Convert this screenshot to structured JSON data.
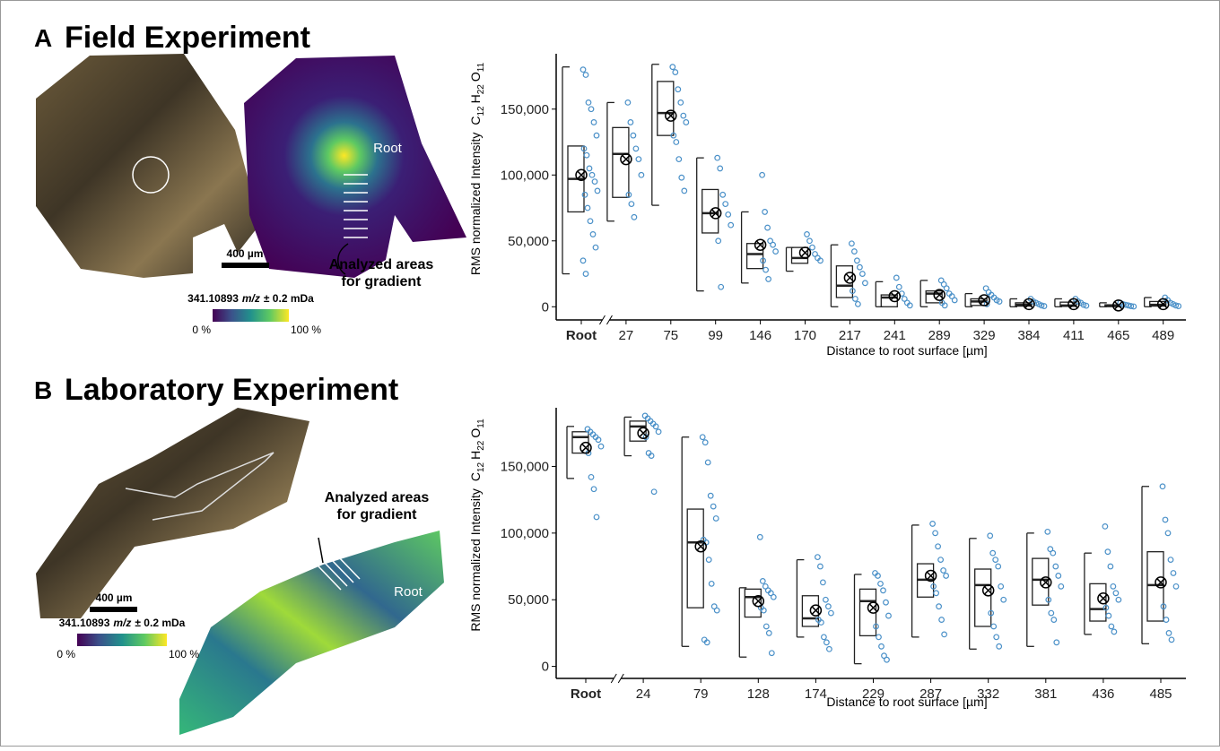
{
  "chart_data": [
    {
      "type": "box",
      "panel": "A",
      "title": "Field Experiment",
      "y_label": "RMS normalized Intensity",
      "y_compound": [
        "C",
        "12",
        "H",
        "22",
        "O",
        "11"
      ],
      "x_label": "Distance to root surface [µm]",
      "categories": [
        "Root",
        "27",
        "75",
        "99",
        "146",
        "170",
        "217",
        "241",
        "289",
        "329",
        "384",
        "411",
        "465",
        "489"
      ],
      "ylim": [
        -10000,
        192000
      ],
      "yticks": [
        0,
        {
          "value": 50000,
          "label": "50,000"
        },
        {
          "value": 100000,
          "label": "100,000"
        },
        {
          "value": 150000,
          "label": "150,000"
        }
      ],
      "box_color": "#222222",
      "point_color": "#4a90c8",
      "min": [
        25000,
        65000,
        77000,
        12000,
        18000,
        27000,
        0,
        0,
        0,
        0,
        0,
        0,
        0,
        0
      ],
      "q1": [
        72000,
        83000,
        130000,
        56000,
        29000,
        33000,
        7000,
        0,
        3000,
        1000,
        500,
        300,
        200,
        500
      ],
      "median": [
        97000,
        116000,
        147000,
        71000,
        40000,
        37000,
        16000,
        7000,
        10000,
        4000,
        1500,
        1000,
        500,
        1500
      ],
      "q3": [
        122000,
        136000,
        171000,
        89000,
        48000,
        45000,
        31000,
        9000,
        12000,
        6000,
        3000,
        3500,
        1500,
        4000
      ],
      "max": [
        182000,
        155000,
        184000,
        113000,
        72000,
        45000,
        47000,
        19000,
        20000,
        10000,
        6000,
        6000,
        3000,
        7000
      ],
      "mean": [
        100000,
        112000,
        145000,
        71000,
        47000,
        41000,
        22000,
        8000,
        9000,
        5000,
        2000,
        2000,
        1000,
        2000
      ],
      "points": [
        [
          180000,
          176000,
          155000,
          150000,
          140000,
          130000,
          120000,
          115000,
          105000,
          100000,
          95000,
          88000,
          85000,
          75000,
          65000,
          55000,
          45000,
          35000,
          25000
        ],
        [
          155000,
          140000,
          130000,
          120000,
          112000,
          100000,
          85000,
          78000,
          68000
        ],
        [
          182000,
          178000,
          165000,
          155000,
          145000,
          140000,
          130000,
          125000,
          112000,
          98000,
          88000
        ],
        [
          113000,
          105000,
          85000,
          78000,
          70000,
          62000,
          50000,
          15000
        ],
        [
          100000,
          72000,
          60000,
          50000,
          47000,
          42000,
          35000,
          28000,
          21000
        ],
        [
          55000,
          50000,
          45000,
          40000,
          37000,
          35000
        ],
        [
          48000,
          42000,
          35000,
          30000,
          25000,
          18000,
          12000,
          6000,
          2000
        ],
        [
          22000,
          15000,
          10000,
          6000,
          3000,
          1000
        ],
        [
          20000,
          17000,
          14000,
          10000,
          8000,
          5000,
          3000,
          1000
        ],
        [
          14000,
          11000,
          9000,
          7000,
          5000,
          4000,
          2000
        ],
        [
          6000,
          4000,
          3000,
          2000,
          1000,
          500
        ],
        [
          6000,
          4000,
          3000,
          1500,
          800
        ],
        [
          3000,
          2000,
          1500,
          1000,
          500,
          200
        ],
        [
          7000,
          5000,
          3000,
          2000,
          1000,
          500
        ]
      ]
    },
    {
      "type": "box",
      "panel": "B",
      "title": "Laboratory Experiment",
      "y_label": "RMS normalized Intensity",
      "y_compound": [
        "C",
        "12",
        "H",
        "22",
        "O",
        "11"
      ],
      "x_label": "Distance to root surface [µm]",
      "categories": [
        "Root",
        "24",
        "79",
        "128",
        "174",
        "229",
        "287",
        "332",
        "381",
        "436",
        "485"
      ],
      "ylim": [
        -9000,
        194000
      ],
      "yticks": [
        0,
        {
          "value": 50000,
          "label": "50,000"
        },
        {
          "value": 100000,
          "label": "100,000"
        },
        {
          "value": 150000,
          "label": "150,000"
        }
      ],
      "box_color": "#222222",
      "point_color": "#4a90c8",
      "min": [
        141000,
        158000,
        15000,
        7000,
        22000,
        2000,
        22000,
        13000,
        15000,
        24000,
        17000
      ],
      "q1": [
        160000,
        169000,
        44000,
        37000,
        30000,
        23000,
        52000,
        30000,
        46000,
        34000,
        34000
      ],
      "median": [
        172000,
        180000,
        93000,
        52000,
        36000,
        49000,
        65000,
        61000,
        65000,
        43000,
        61000
      ],
      "q3": [
        176000,
        184000,
        118000,
        58000,
        53000,
        58000,
        77000,
        73000,
        81000,
        62000,
        86000
      ],
      "max": [
        180000,
        187000,
        172000,
        59000,
        80000,
        69000,
        106000,
        96000,
        100000,
        85000,
        135000
      ],
      "mean": [
        164000,
        175000,
        90000,
        49000,
        42000,
        44000,
        68000,
        57000,
        63000,
        51000,
        63000
      ],
      "points": [
        [
          178000,
          176000,
          174000,
          172000,
          170000,
          165000,
          160000,
          142000,
          133000,
          112000
        ],
        [
          188000,
          186000,
          184000,
          182000,
          180000,
          176000,
          172000,
          160000,
          158000,
          131000
        ],
        [
          172000,
          168000,
          153000,
          128000,
          120000,
          111000,
          95000,
          93000,
          80000,
          62000,
          45000,
          42000,
          20000,
          18000
        ],
        [
          97000,
          64000,
          60000,
          57000,
          55000,
          52000,
          44000,
          42000,
          30000,
          25000,
          10000
        ],
        [
          82000,
          75000,
          63000,
          50000,
          45000,
          40000,
          35000,
          33000,
          22000,
          18000,
          13000
        ],
        [
          70000,
          68000,
          62000,
          57000,
          48000,
          38000,
          30000,
          22000,
          15000,
          8000,
          5000
        ],
        [
          107000,
          100000,
          90000,
          80000,
          72000,
          68000,
          60000,
          55000,
          45000,
          35000,
          24000
        ],
        [
          98000,
          85000,
          80000,
          75000,
          60000,
          50000,
          40000,
          30000,
          22000,
          15000
        ],
        [
          101000,
          88000,
          85000,
          75000,
          68000,
          60000,
          50000,
          40000,
          35000,
          18000
        ],
        [
          105000,
          86000,
          75000,
          60000,
          55000,
          50000,
          44000,
          38000,
          30000,
          26000
        ],
        [
          135000,
          110000,
          100000,
          80000,
          70000,
          60000,
          45000,
          35000,
          25000,
          20000
        ]
      ]
    }
  ],
  "images": [
    {
      "scale_bar": "400 µm",
      "colorbar_label": [
        "341.10893",
        "m/z",
        "± 0.2 mDa"
      ],
      "colorbar_ticks": [
        "0 %",
        "100 %"
      ],
      "root_label": "Root",
      "arrow_label": [
        "Analyzed areas",
        "for gradient"
      ]
    },
    {
      "scale_bar": "400 µm",
      "colorbar_label": [
        "341.10893",
        "m/z",
        "± 0.2 mDa"
      ],
      "colorbar_ticks": [
        "0 %",
        "100 %"
      ],
      "root_label": "Root",
      "arrow_label": [
        "Analyzed areas",
        "for gradient"
      ]
    }
  ]
}
